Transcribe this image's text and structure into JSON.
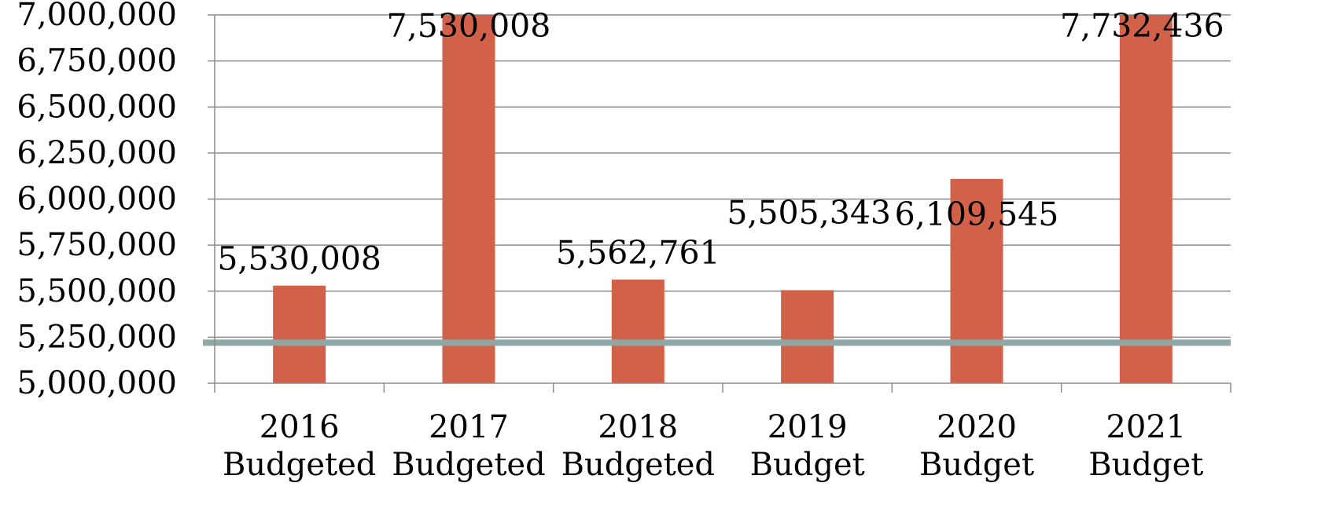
{
  "chart_data": {
    "type": "bar",
    "categories": [
      [
        "2016",
        "Budgeted"
      ],
      [
        "2017",
        "Budgeted"
      ],
      [
        "2018",
        "Budgeted"
      ],
      [
        "2019",
        "Budget"
      ],
      [
        "2020",
        "Budget"
      ],
      [
        "2021",
        "Budget"
      ]
    ],
    "series": [
      {
        "values": [
          5530008,
          7530008,
          5562761,
          5505343,
          6109545,
          7732436
        ],
        "data_labels": [
          "5,530,008",
          "7,530,008",
          "5,562,761",
          "5,505,343",
          "6,109,545",
          "7,732,436"
        ],
        "color": "#d2614a"
      }
    ],
    "reference_line": {
      "value": 5220000,
      "color": "#8fa7a7"
    },
    "ylim": [
      5000000,
      7000000
    ],
    "yticks": [
      5000000,
      5250000,
      5500000,
      5750000,
      6000000,
      6250000,
      6500000,
      6750000,
      7000000
    ],
    "ytick_labels": [
      "5,000,000",
      "5,250,000",
      "5,500,000",
      "5,750,000",
      "6,000,000",
      "6,250,000",
      "6,500,000",
      "6,750,000",
      "7,000,000"
    ],
    "grid": true,
    "legend": "none",
    "title": "",
    "xlabel": "",
    "ylabel": "",
    "colors": {
      "bar": "#d2614a",
      "grid": "#8c8c8c",
      "axis": "#8c8c8c",
      "reference": "#8fa7a7"
    }
  }
}
